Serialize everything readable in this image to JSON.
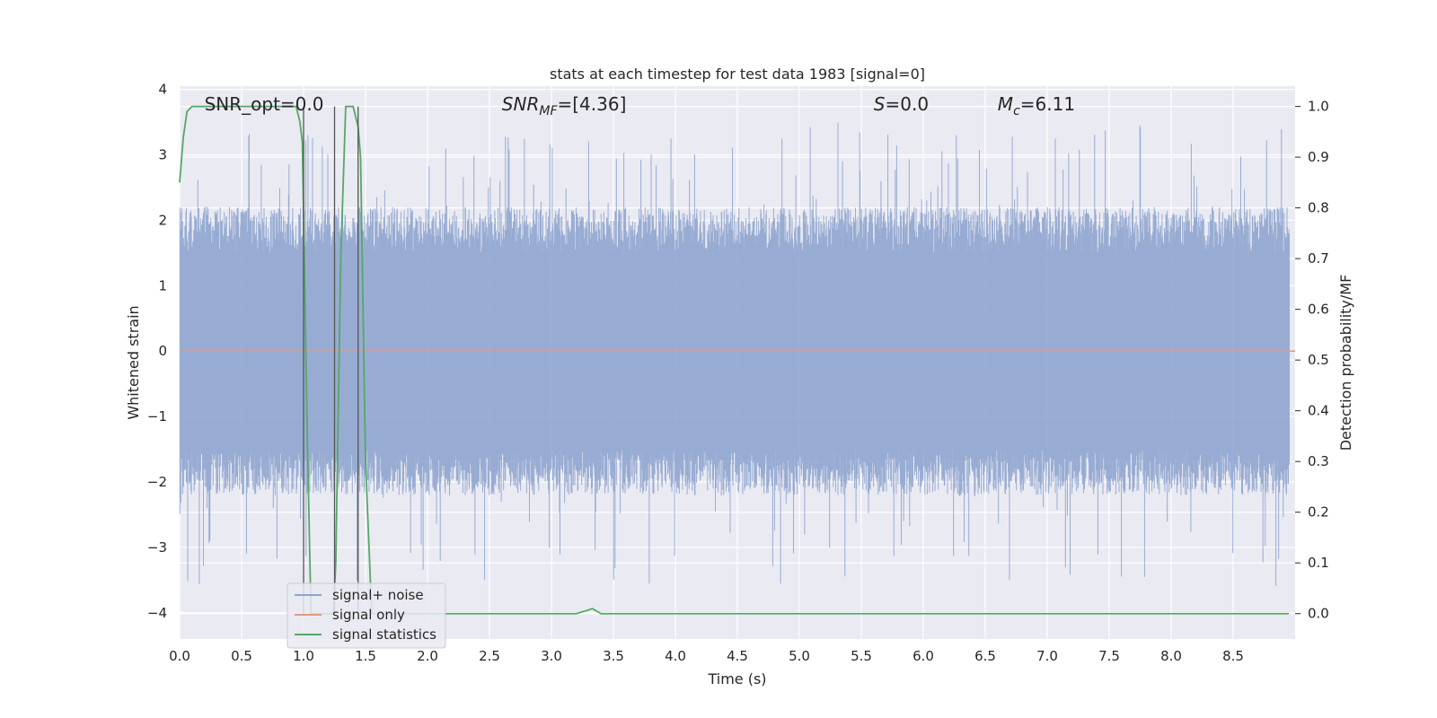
{
  "chart_data": {
    "type": "line",
    "title": "stats at each timestep for test data 1983 [signal=0]",
    "xlabel": "Time (s)",
    "ylabel": "Whitened strain",
    "y2label": "Detection probability/MF",
    "xlim": [
      0,
      9
    ],
    "ylim": [
      -4.4,
      4.05
    ],
    "y2lim": [
      -0.05,
      1.04
    ],
    "x_ticks": [
      "0.0",
      "0.5",
      "1.0",
      "1.5",
      "2.0",
      "2.5",
      "3.0",
      "3.5",
      "4.0",
      "4.5",
      "5.0",
      "5.5",
      "6.0",
      "6.5",
      "7.0",
      "7.5",
      "8.0",
      "8.5"
    ],
    "y_ticks": [
      "4",
      "3",
      "2",
      "1",
      "0",
      "−1",
      "−2",
      "−3",
      "−4"
    ],
    "y2_ticks": [
      "1.0",
      "0.9",
      "0.8",
      "0.7",
      "0.6",
      "0.5",
      "0.4",
      "0.3",
      "0.2",
      "0.1",
      "0.0"
    ],
    "grid": true,
    "legend_position": "lower-left",
    "series": [
      {
        "name": "signal+ noise",
        "color": "#8fa5cf",
        "axis": "left",
        "kind": "noise",
        "envelope_typical": 2.0,
        "envelope_peak": 3.6
      },
      {
        "name": "signal only",
        "color": "#e29a7f",
        "axis": "left",
        "x": [
          0,
          9
        ],
        "y": [
          0,
          0
        ]
      },
      {
        "name": "signal statistics",
        "color": "#55a868",
        "axis": "right",
        "x": [
          0.0,
          0.03,
          0.06,
          0.1,
          0.15,
          0.3,
          0.5,
          0.7,
          0.9,
          0.94,
          0.97,
          0.99,
          1.03,
          1.06,
          1.1,
          1.15,
          1.2,
          1.24,
          1.26,
          1.3,
          1.34,
          1.4,
          1.44,
          1.46,
          1.5,
          1.55,
          1.6,
          2.0,
          2.5,
          3.0,
          3.2,
          3.27,
          3.33,
          3.4,
          4.0,
          5.0,
          6.0,
          7.0,
          8.0,
          8.95
        ],
        "y": [
          0.85,
          0.94,
          0.99,
          1.0,
          1.0,
          1.0,
          1.0,
          1.0,
          1.0,
          1.0,
          0.97,
          0.93,
          0.35,
          0.0,
          0.0,
          0.0,
          0.0,
          0.0,
          0.1,
          0.7,
          1.0,
          1.0,
          0.96,
          0.9,
          0.3,
          0.0,
          0.0,
          0.0,
          0.0,
          0.0,
          0.0,
          0.005,
          0.01,
          0.0,
          0.0,
          0.0,
          0.0,
          0.0,
          0.0,
          0.0
        ]
      }
    ],
    "vertical_lines": [
      1.0,
      1.25,
      1.44
    ],
    "annotations": [
      {
        "text": "SNR_opt=0.0",
        "x": 0.2
      },
      {
        "text": "SNR",
        "sub": "MF",
        "suffix": "=[4.36]",
        "x": 2.6,
        "italic": true
      },
      {
        "text": "S",
        "suffix": "=0.0",
        "x": 5.6,
        "italic": true
      },
      {
        "text": "M",
        "sub": "c",
        "suffix": "=6.11",
        "x": 6.6,
        "italic": true
      }
    ]
  }
}
